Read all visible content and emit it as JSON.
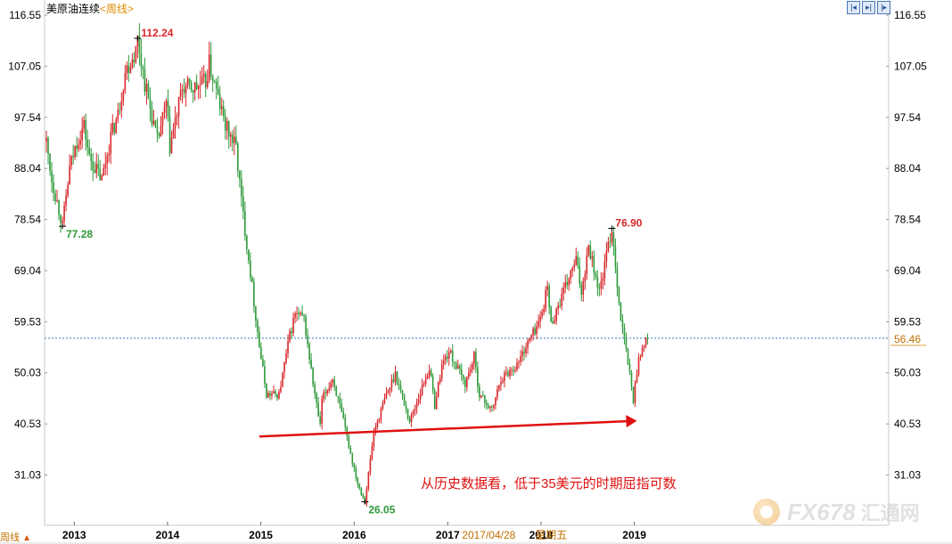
{
  "header": {
    "instrument": "美原油连续",
    "period": "<周线>",
    "buttons": [
      "|◂",
      "▸|",
      "|▸"
    ]
  },
  "corner": {
    "label": "周线",
    "arrow": "▲"
  },
  "watermark": {
    "brand": "FX678",
    "cn": "汇通网"
  },
  "colors": {
    "up": "#d8262a",
    "down": "#2e9a3a",
    "hline": "#2f7cc0",
    "arrow": "#e01010"
  },
  "chart_data": {
    "type": "candlestick",
    "title": "",
    "y_ticks": [
      116.55,
      107.05,
      97.54,
      88.04,
      78.54,
      69.04,
      59.53,
      50.03,
      40.53,
      31.03
    ],
    "x_ticks": [
      "2013",
      "2014",
      "2015",
      "2016",
      "2017",
      "2018",
      "2019"
    ],
    "ylim": [
      25.5,
      117.5
    ],
    "current_price": 56.46,
    "cursor_date": "2017/04/28",
    "cursor_weekday": "星期五",
    "price_points": [
      [
        "2012-09-14",
        93
      ],
      [
        "2012-10-05",
        86
      ],
      [
        "2012-11-09",
        79
      ],
      [
        "2012-11-16",
        77.28
      ],
      [
        "2012-12-14",
        88
      ],
      [
        "2013-01-11",
        93
      ],
      [
        "2013-02-08",
        96
      ],
      [
        "2013-03-01",
        90
      ],
      [
        "2013-04-19",
        86
      ],
      [
        "2013-05-24",
        94
      ],
      [
        "2013-06-21",
        98
      ],
      [
        "2013-07-19",
        106
      ],
      [
        "2013-08-30",
        110
      ],
      [
        "2013-09-06",
        112.24
      ],
      [
        "2013-10-04",
        104
      ],
      [
        "2013-11-22",
        93
      ],
      [
        "2013-12-27",
        100
      ],
      [
        "2014-01-10",
        92
      ],
      [
        "2014-02-28",
        103
      ],
      [
        "2014-04-18",
        103
      ],
      [
        "2014-05-30",
        104
      ],
      [
        "2014-06-13",
        107.5
      ],
      [
        "2014-07-18",
        101
      ],
      [
        "2014-08-15",
        96
      ],
      [
        "2014-09-26",
        92
      ],
      [
        "2014-10-17",
        82
      ],
      [
        "2014-11-28",
        66
      ],
      [
        "2014-12-26",
        55
      ],
      [
        "2015-01-23",
        46
      ],
      [
        "2015-03-13",
        46
      ],
      [
        "2015-04-24",
        57
      ],
      [
        "2015-05-15",
        61
      ],
      [
        "2015-06-19",
        60
      ],
      [
        "2015-07-24",
        48
      ],
      [
        "2015-08-21",
        40
      ],
      [
        "2015-08-28",
        45
      ],
      [
        "2015-10-09",
        49
      ],
      [
        "2015-11-20",
        41
      ],
      [
        "2015-12-18",
        35
      ],
      [
        "2016-01-15",
        29.5
      ],
      [
        "2016-02-12",
        26.05
      ],
      [
        "2016-03-18",
        39
      ],
      [
        "2016-04-29",
        45
      ],
      [
        "2016-06-10",
        50
      ],
      [
        "2016-08-05",
        41
      ],
      [
        "2016-10-21",
        51
      ],
      [
        "2016-11-11",
        44
      ],
      [
        "2016-12-09",
        51.5
      ],
      [
        "2017-01-06",
        54
      ],
      [
        "2017-03-10",
        48
      ],
      [
        "2017-04-14",
        53
      ],
      [
        "2017-05-05",
        46
      ],
      [
        "2017-06-23",
        43
      ],
      [
        "2017-07-28",
        49
      ],
      [
        "2017-09-29",
        51.5
      ],
      [
        "2017-11-03",
        55
      ],
      [
        "2017-12-29",
        60
      ],
      [
        "2018-01-26",
        66
      ],
      [
        "2018-02-09",
        59
      ],
      [
        "2018-03-30",
        65
      ],
      [
        "2018-05-18",
        71
      ],
      [
        "2018-06-08",
        65
      ],
      [
        "2018-07-06",
        74
      ],
      [
        "2018-08-17",
        65
      ],
      [
        "2018-10-05",
        76.9
      ],
      [
        "2018-11-09",
        60
      ],
      [
        "2018-12-07",
        52
      ],
      [
        "2018-12-28",
        45
      ],
      [
        "2019-01-18",
        53
      ],
      [
        "2019-02-22",
        56.46
      ]
    ],
    "annotations": [
      {
        "label": "112.24",
        "date": "2013-09-06",
        "value": 112.24,
        "kind": "high"
      },
      {
        "label": "77.28",
        "date": "2012-11-16",
        "value": 77.28,
        "kind": "low"
      },
      {
        "label": "76.90",
        "date": "2018-10-05",
        "value": 76.9,
        "kind": "high"
      },
      {
        "label": "26.05",
        "date": "2016-02-12",
        "value": 26.05,
        "kind": "low"
      }
    ],
    "trend_arrow": {
      "from": [
        "2014-12-26",
        38.2
      ],
      "to": [
        "2019-01-11",
        41.1
      ]
    },
    "note": "从历史数据看，低于35美元的时期屈指可数",
    "current_value_label": "56.46"
  }
}
